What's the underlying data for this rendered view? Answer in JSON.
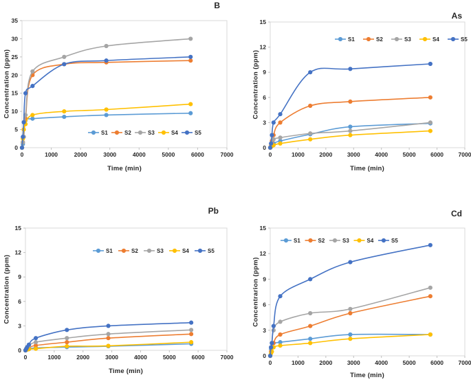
{
  "figure": {
    "background": "#ffffff"
  },
  "palette": {
    "S1": "#5B9BD5",
    "S2": "#ED7D31",
    "S3": "#A5A5A5",
    "S4": "#FFC000",
    "S5": "#4472C4"
  },
  "chart_data": [
    {
      "key": "b",
      "type": "line",
      "title": "B",
      "xlabel": "Time (min)",
      "ylabel": "Concentration (ppm)",
      "xlim": [
        0,
        7000
      ],
      "ylim": [
        0,
        35
      ],
      "xticks": [
        0,
        1000,
        2000,
        3000,
        4000,
        5000,
        6000,
        7000
      ],
      "yticks": [
        0,
        5,
        10,
        15,
        20,
        25,
        30,
        35
      ],
      "grid": false,
      "legend_position": "inside-bottom-center",
      "x": [
        0,
        30,
        60,
        120,
        360,
        1440,
        2880,
        5760
      ],
      "series": [
        {
          "name": "S1",
          "color": "#5B9BD5",
          "values": [
            0,
            1,
            3,
            7.5,
            8,
            8.5,
            9,
            9.5
          ]
        },
        {
          "name": "S2",
          "color": "#ED7D31",
          "values": [
            0,
            1.5,
            3,
            8,
            20,
            23,
            23.5,
            24
          ]
        },
        {
          "name": "S3",
          "color": "#A5A5A5",
          "values": [
            0,
            1.5,
            3,
            9,
            21,
            25,
            28,
            30
          ]
        },
        {
          "name": "S4",
          "color": "#FFC000",
          "values": [
            0,
            2.5,
            5,
            6.5,
            9,
            10,
            10.5,
            12
          ]
        },
        {
          "name": "S5",
          "color": "#4472C4",
          "values": [
            0,
            3,
            7,
            15,
            17,
            23,
            24,
            25
          ]
        }
      ]
    },
    {
      "key": "as",
      "type": "line",
      "title": "As",
      "xlabel": "Time (min)",
      "ylabel": "Concentration (ppm)",
      "xlim": [
        0,
        7000
      ],
      "ylim": [
        0,
        15
      ],
      "xticks": [
        0,
        1000,
        2000,
        3000,
        4000,
        5000,
        6000,
        7000
      ],
      "yticks": [
        0,
        3,
        6,
        9,
        12,
        15
      ],
      "grid": false,
      "legend_position": "inside-top-center",
      "x": [
        0,
        30,
        60,
        120,
        360,
        1440,
        2880,
        5760
      ],
      "series": [
        {
          "name": "S1",
          "color": "#5B9BD5",
          "values": [
            0,
            0.1,
            0.3,
            0.5,
            0.8,
            1.6,
            2.5,
            2.9
          ]
        },
        {
          "name": "S2",
          "color": "#ED7D31",
          "values": [
            0,
            0.3,
            0.8,
            1.5,
            3,
            5,
            5.5,
            6
          ]
        },
        {
          "name": "S3",
          "color": "#A5A5A5",
          "values": [
            0,
            0.2,
            0.5,
            1,
            1.2,
            1.7,
            2,
            3
          ]
        },
        {
          "name": "S4",
          "color": "#FFC000",
          "values": [
            0,
            0.1,
            0.2,
            0.3,
            0.5,
            1,
            1.5,
            2
          ]
        },
        {
          "name": "S5",
          "color": "#4472C4",
          "values": [
            0,
            0.5,
            1.5,
            3,
            4,
            9,
            9.4,
            10
          ]
        }
      ]
    },
    {
      "key": "pb",
      "type": "line",
      "title": "Pb",
      "xlabel": "Time (min)",
      "ylabel": "Concentration (ppm)",
      "xlim": [
        0,
        7000
      ],
      "ylim": [
        0,
        15
      ],
      "xticks": [
        0,
        1000,
        2000,
        3000,
        4000,
        5000,
        6000,
        7000
      ],
      "yticks": [
        0,
        3,
        6,
        9,
        12,
        15
      ],
      "grid": false,
      "legend_position": "inside-top-center",
      "x": [
        0,
        30,
        60,
        120,
        360,
        1440,
        2880,
        5760
      ],
      "series": [
        {
          "name": "S1",
          "color": "#5B9BD5",
          "values": [
            0,
            0.05,
            0.1,
            0.15,
            0.3,
            0.4,
            0.5,
            0.8
          ]
        },
        {
          "name": "S2",
          "color": "#ED7D31",
          "values": [
            0,
            0.1,
            0.2,
            0.3,
            0.6,
            1,
            1.5,
            2
          ]
        },
        {
          "name": "S3",
          "color": "#A5A5A5",
          "values": [
            0,
            0.2,
            0.3,
            0.5,
            1,
            1.5,
            2,
            2.5
          ]
        },
        {
          "name": "S4",
          "color": "#FFC000",
          "values": [
            0,
            0.05,
            0.1,
            0.15,
            0.2,
            0.5,
            0.55,
            1
          ]
        },
        {
          "name": "S5",
          "color": "#4472C4",
          "values": [
            0,
            0.2,
            0.4,
            0.7,
            1.5,
            2.5,
            3,
            3.4
          ]
        }
      ]
    },
    {
      "key": "cd",
      "type": "line",
      "title": "Cd",
      "xlabel": "Time (min)",
      "ylabel": "Concentrarion (ppm)",
      "xlim": [
        0,
        7000
      ],
      "ylim": [
        0,
        15
      ],
      "xticks": [
        0,
        1000,
        2000,
        3000,
        4000,
        5000,
        6000,
        7000
      ],
      "yticks": [
        0,
        3,
        6,
        9,
        12,
        15
      ],
      "grid": false,
      "legend_position": "inside-top-left",
      "x": [
        0,
        30,
        60,
        120,
        360,
        1440,
        2880,
        5760
      ],
      "series": [
        {
          "name": "S1",
          "color": "#5B9BD5",
          "values": [
            0,
            0.8,
            1.5,
            1.5,
            1.6,
            2,
            2.5,
            2.5
          ]
        },
        {
          "name": "S2",
          "color": "#ED7D31",
          "values": [
            0,
            0.5,
            1,
            1.5,
            2.5,
            3.5,
            5,
            7
          ]
        },
        {
          "name": "S3",
          "color": "#A5A5A5",
          "values": [
            0,
            1,
            1.5,
            3,
            4,
            5,
            5.5,
            8
          ]
        },
        {
          "name": "S4",
          "color": "#FFC000",
          "values": [
            0,
            0.3,
            0.5,
            1,
            1.2,
            1.5,
            2,
            2.5
          ]
        },
        {
          "name": "S5",
          "color": "#4472C4",
          "values": [
            0,
            1,
            1.5,
            3.5,
            7,
            9,
            11,
            13
          ]
        }
      ]
    }
  ]
}
